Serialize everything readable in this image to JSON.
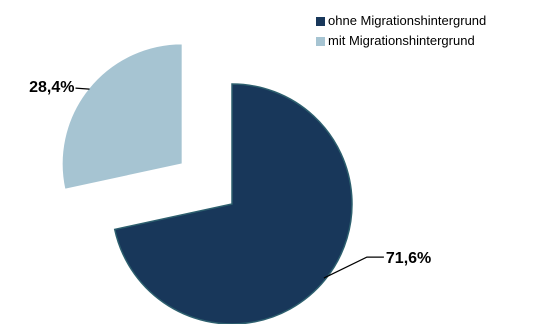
{
  "chart_data": {
    "type": "pie",
    "exploded": true,
    "legend_position": "top-right",
    "slices": [
      {
        "name": "ohne Migrationshintergrund",
        "value": 71.6,
        "label": "71,6%",
        "color": "#18375a"
      },
      {
        "name": "mit Migrationshintergrund",
        "value": 28.4,
        "label": "28,4%",
        "color": "#a6c4d2"
      }
    ]
  }
}
